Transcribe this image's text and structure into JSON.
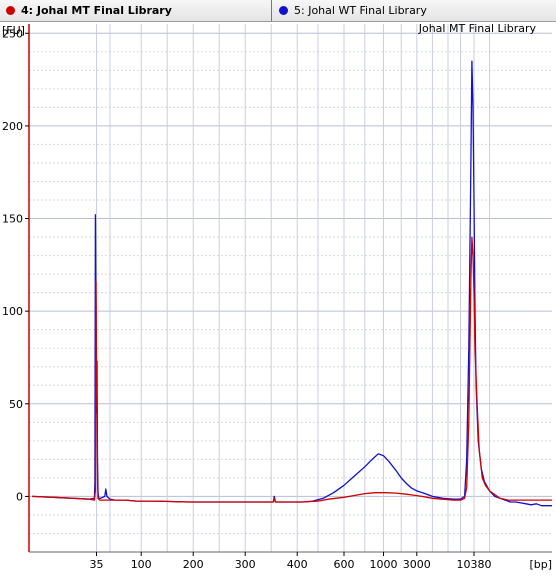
{
  "tabs": [
    {
      "label": "4: Johal MT Final Library",
      "color": "#d00000"
    },
    {
      "label": "5: Johal WT Final Library",
      "color": "#1010d0"
    }
  ],
  "chart_data": {
    "type": "line",
    "title": "Johal MT Final Library",
    "ylabel": "[FU]",
    "xlabel": "[bp]",
    "ylim": [
      -30,
      255
    ],
    "yticks": [
      0,
      50,
      100,
      150,
      200,
      250
    ],
    "xticks": [
      "35",
      "100",
      "200",
      "300",
      "400",
      "600",
      "1000",
      "3000",
      "10380"
    ],
    "grid": true,
    "series": [
      {
        "name": "4: Johal MT Final Library",
        "color": "#d00000",
        "points": [
          [
            0,
            0
          ],
          [
            20,
            -0.5
          ],
          [
            40,
            -1
          ],
          [
            55,
            -1.5
          ],
          [
            60,
            -2
          ],
          [
            61,
            3
          ],
          [
            61.5,
            116
          ],
          [
            62,
            70
          ],
          [
            62.5,
            50
          ],
          [
            63,
            10
          ],
          [
            63.5,
            -1
          ],
          [
            65,
            -2
          ],
          [
            70,
            -2
          ],
          [
            75,
            -2
          ],
          [
            80,
            -2
          ],
          [
            90,
            -2
          ],
          [
            100,
            -2.5
          ],
          [
            120,
            -2.5
          ],
          [
            150,
            -3
          ],
          [
            170,
            -3
          ],
          [
            180,
            -3
          ],
          [
            200,
            -3
          ],
          [
            210,
            -3
          ],
          [
            220,
            -3
          ],
          [
            232,
            -3
          ],
          [
            233,
            -1
          ],
          [
            234,
            -3
          ],
          [
            240,
            -3
          ],
          [
            250,
            -3
          ],
          [
            260,
            -3
          ],
          [
            275,
            -2.5
          ],
          [
            285,
            -1.5
          ],
          [
            300,
            -0.5
          ],
          [
            310,
            0.5
          ],
          [
            320,
            1.5
          ],
          [
            330,
            2
          ],
          [
            340,
            2
          ],
          [
            350,
            1.8
          ],
          [
            360,
            1.2
          ],
          [
            365,
            0.8
          ],
          [
            375,
            0
          ],
          [
            385,
            -1
          ],
          [
            395,
            -1.5
          ],
          [
            405,
            -2
          ],
          [
            412,
            -2
          ],
          [
            416,
            -1
          ],
          [
            418,
            5
          ],
          [
            420,
            40
          ],
          [
            422,
            118
          ],
          [
            423,
            140
          ],
          [
            424,
            130
          ],
          [
            425,
            110
          ],
          [
            426,
            80
          ],
          [
            428,
            50
          ],
          [
            430,
            25
          ],
          [
            433,
            10
          ],
          [
            436,
            6
          ],
          [
            440,
            3
          ],
          [
            445,
            1
          ],
          [
            450,
            -1
          ],
          [
            458,
            -2
          ],
          [
            465,
            -2
          ],
          [
            475,
            -2
          ],
          [
            485,
            -2
          ],
          [
            495,
            -2
          ],
          [
            500,
            -2
          ]
        ]
      },
      {
        "name": "5: Johal WT Final Library",
        "color": "#1010d0",
        "points": [
          [
            0,
            0
          ],
          [
            20,
            -0.5
          ],
          [
            40,
            -1
          ],
          [
            55,
            -1.5
          ],
          [
            60,
            -1
          ],
          [
            60.5,
            8
          ],
          [
            61,
            152
          ],
          [
            61.5,
            100
          ],
          [
            62,
            45
          ],
          [
            62.5,
            73
          ],
          [
            63,
            20
          ],
          [
            63.5,
            3
          ],
          [
            64,
            -1
          ],
          [
            66,
            -1
          ],
          [
            70,
            0
          ],
          [
            71,
            4
          ],
          [
            72,
            0
          ],
          [
            75,
            -1.5
          ],
          [
            80,
            -2
          ],
          [
            90,
            -2
          ],
          [
            100,
            -2.5
          ],
          [
            120,
            -2.5
          ],
          [
            150,
            -3
          ],
          [
            170,
            -3
          ],
          [
            180,
            -3
          ],
          [
            200,
            -3
          ],
          [
            210,
            -3
          ],
          [
            220,
            -3
          ],
          [
            232,
            -3
          ],
          [
            233,
            0
          ],
          [
            234,
            -3
          ],
          [
            240,
            -3
          ],
          [
            250,
            -3
          ],
          [
            260,
            -3
          ],
          [
            270,
            -2.5
          ],
          [
            280,
            -1
          ],
          [
            290,
            2
          ],
          [
            300,
            6
          ],
          [
            310,
            11
          ],
          [
            320,
            16
          ],
          [
            327,
            20
          ],
          [
            333,
            23
          ],
          [
            338,
            22
          ],
          [
            343,
            19
          ],
          [
            350,
            14
          ],
          [
            355,
            10
          ],
          [
            360,
            7
          ],
          [
            365,
            4.5
          ],
          [
            370,
            3
          ],
          [
            378,
            1.5
          ],
          [
            385,
            0
          ],
          [
            395,
            -1
          ],
          [
            405,
            -1.5
          ],
          [
            412,
            -1.5
          ],
          [
            416,
            0
          ],
          [
            418,
            20
          ],
          [
            420,
            80
          ],
          [
            422,
            180
          ],
          [
            423,
            235
          ],
          [
            424,
            210
          ],
          [
            425,
            160
          ],
          [
            426,
            100
          ],
          [
            427,
            60
          ],
          [
            429,
            30
          ],
          [
            432,
            15
          ],
          [
            435,
            8
          ],
          [
            440,
            3
          ],
          [
            445,
            0
          ],
          [
            450,
            -1
          ],
          [
            455,
            -2
          ],
          [
            460,
            -3
          ],
          [
            465,
            -3
          ],
          [
            470,
            -3.5
          ],
          [
            475,
            -4
          ],
          [
            480,
            -4.5
          ],
          [
            485,
            -4
          ],
          [
            490,
            -5
          ],
          [
            495,
            -5
          ],
          [
            500,
            -5
          ]
        ]
      }
    ]
  }
}
